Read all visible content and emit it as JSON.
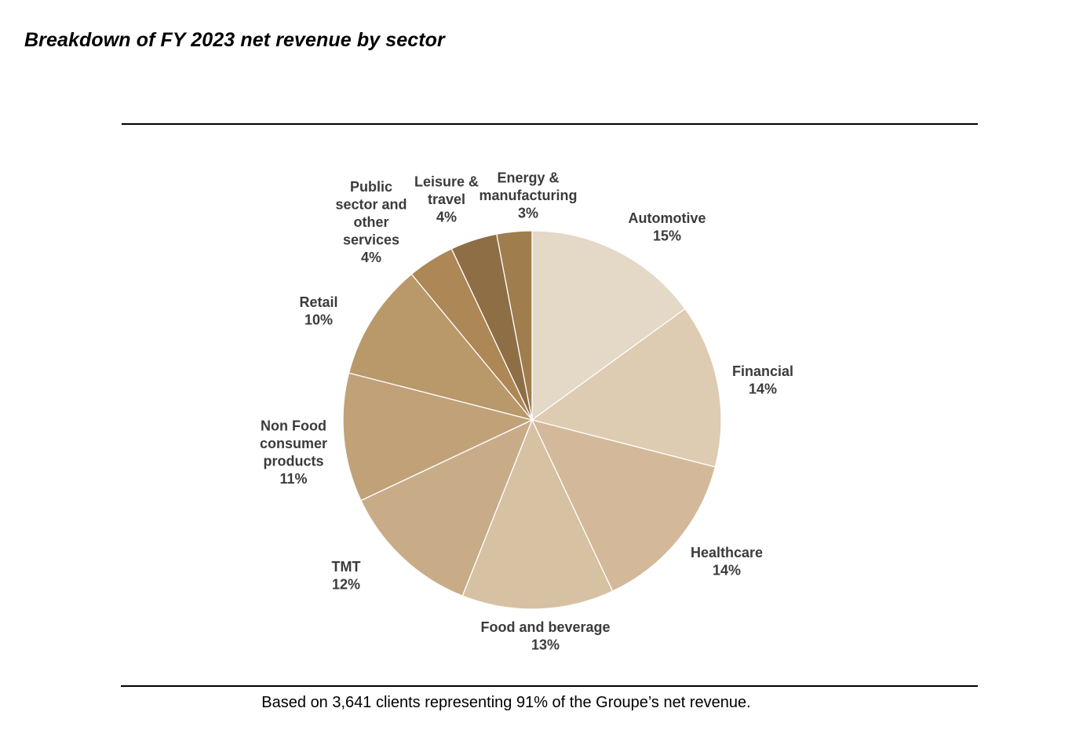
{
  "header": {
    "title": "Breakdown of FY 2023 net revenue by sector"
  },
  "footer": {
    "note": "Based on 3,641 clients representing 91% of the Groupe’s net revenue."
  },
  "chart_data": {
    "type": "pie",
    "title": "Breakdown of FY 2023 net revenue by sector",
    "value_unit": "%",
    "slice_border_color": "#ffffff",
    "start_angle": "12 o'clock",
    "direction": "clockwise",
    "categories": [
      "Automotive",
      "Financial",
      "Healthcare",
      "Food and beverage",
      "TMT",
      "Non Food consumer products",
      "Retail",
      "Public sector and other services",
      "Leisure & travel",
      "Energy & manufacturing"
    ],
    "slices": [
      {
        "label": "Automotive",
        "label_lines": [
          "Automotive"
        ],
        "value": 15,
        "value_label": "15%",
        "color": "#e4d8c6"
      },
      {
        "label": "Financial",
        "label_lines": [
          "Financial"
        ],
        "value": 14,
        "value_label": "14%",
        "color": "#ddcbb2"
      },
      {
        "label": "Healthcare",
        "label_lines": [
          "Healthcare"
        ],
        "value": 14,
        "value_label": "14%",
        "color": "#d3b999"
      },
      {
        "label": "Food and beverage",
        "label_lines": [
          "Food and beverage"
        ],
        "value": 13,
        "value_label": "13%",
        "color": "#d7c1a3"
      },
      {
        "label": "TMT",
        "label_lines": [
          "TMT"
        ],
        "value": 12,
        "value_label": "12%",
        "color": "#c8ac88"
      },
      {
        "label": "Non Food consumer products",
        "label_lines": [
          "Non Food",
          "consumer",
          "products"
        ],
        "value": 11,
        "value_label": "11%",
        "color": "#c1a177"
      },
      {
        "label": "Retail",
        "label_lines": [
          "Retail"
        ],
        "value": 10,
        "value_label": "10%",
        "color": "#b99869"
      },
      {
        "label": "Public sector and other services",
        "label_lines": [
          "Public",
          "sector and",
          "other",
          "services"
        ],
        "value": 4,
        "value_label": "4%",
        "color": "#ad8755"
      },
      {
        "label": "Leisure & travel",
        "label_lines": [
          "Leisure &",
          "travel"
        ],
        "value": 4,
        "value_label": "4%",
        "color": "#8e6e45"
      },
      {
        "label": "Energy & manufacturing",
        "label_lines": [
          "Energy &",
          "manufacturing"
        ],
        "value": 3,
        "value_label": "3%",
        "color": "#a07d4d"
      }
    ]
  }
}
